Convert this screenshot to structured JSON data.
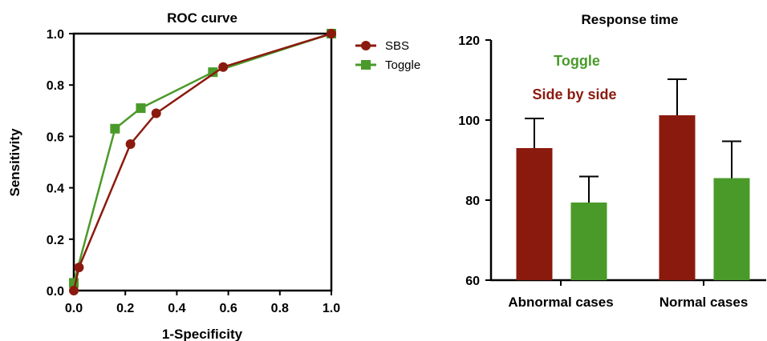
{
  "chart_data": [
    {
      "type": "line",
      "title": "ROC curve",
      "xlabel": "1-Specificity",
      "ylabel": "Sensitivity",
      "xlim": [
        0,
        1
      ],
      "ylim": [
        0,
        1
      ],
      "xticks": [
        "0.0",
        "0.2",
        "0.4",
        "0.6",
        "0.8",
        "1.0"
      ],
      "yticks": [
        "0.0",
        "0.2",
        "0.4",
        "0.6",
        "0.8",
        "1.0"
      ],
      "legend_position": "right",
      "series": [
        {
          "name": "SBS",
          "color": "#8B1A0E",
          "marker": "circle",
          "points": [
            [
              0,
              0
            ],
            [
              0.02,
              0.09
            ],
            [
              0.22,
              0.57
            ],
            [
              0.32,
              0.69
            ],
            [
              0.58,
              0.87
            ],
            [
              1.0,
              1.0
            ]
          ]
        },
        {
          "name": "Toggle",
          "color": "#4A9A2A",
          "marker": "square",
          "points": [
            [
              0,
              0.03
            ],
            [
              0.16,
              0.63
            ],
            [
              0.26,
              0.71
            ],
            [
              0.54,
              0.85
            ],
            [
              1.0,
              1.0
            ]
          ]
        }
      ]
    },
    {
      "type": "bar",
      "title": "Response time",
      "xlabel": "",
      "ylabel": "",
      "ylim": [
        60,
        120
      ],
      "yticks": [
        "60",
        "80",
        "100",
        "120"
      ],
      "categories": [
        "Abnormal cases",
        "Normal cases"
      ],
      "annotations": [
        {
          "text": "Toggle",
          "color": "#4A9A2A"
        },
        {
          "text": "Side by side",
          "color": "#8B1A0E"
        }
      ],
      "series": [
        {
          "color": "#8B1A0E",
          "values": [
            93,
            101.2
          ],
          "errors": [
            7.4,
            9
          ]
        },
        {
          "color": "#4A9A2A",
          "values": [
            79.4,
            85.5
          ],
          "errors": [
            6.5,
            9.2
          ]
        }
      ]
    }
  ]
}
